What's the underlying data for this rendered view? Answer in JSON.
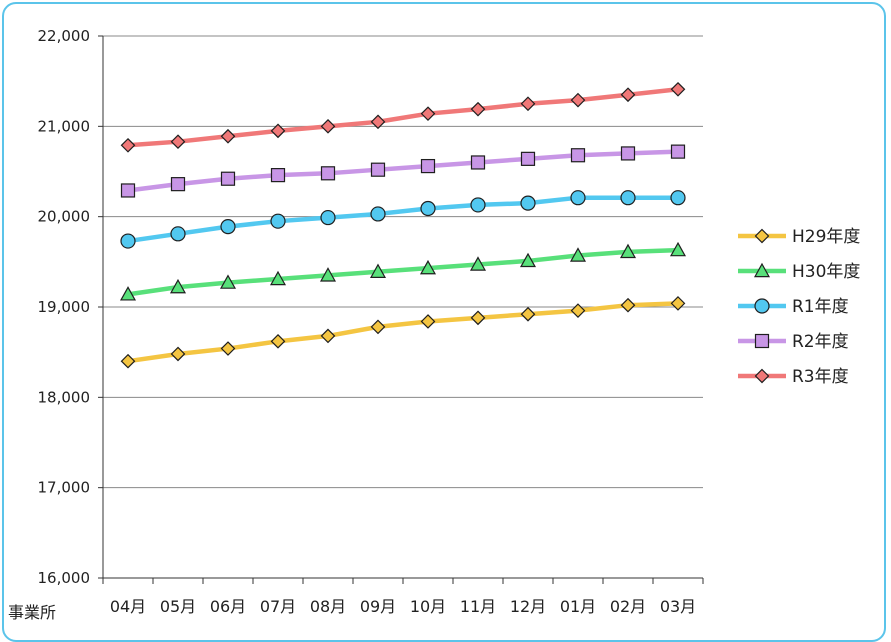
{
  "chart_data": {
    "type": "line",
    "title": "",
    "xlabel": "事業所",
    "ylabel": "",
    "categories": [
      "04月",
      "05月",
      "06月",
      "07月",
      "08月",
      "09月",
      "10月",
      "11月",
      "12月",
      "01月",
      "02月",
      "03月"
    ],
    "ylim": [
      16000,
      22000
    ],
    "yticks": [
      16000,
      17000,
      18000,
      19000,
      20000,
      21000,
      22000
    ],
    "ytick_labels": [
      "16,000",
      "17,000",
      "18,000",
      "19,000",
      "20,000",
      "21,000",
      "22,000"
    ],
    "grid": true,
    "legend_position": "right",
    "series": [
      {
        "name": "H29年度",
        "color": "#f4c542",
        "marker": "diamond",
        "marker_fill": "#f4c542",
        "values": [
          18400,
          18480,
          18540,
          18620,
          18680,
          18780,
          18840,
          18880,
          18920,
          18960,
          19020,
          19040
        ]
      },
      {
        "name": "H30年度",
        "color": "#58e07a",
        "marker": "triangle",
        "marker_fill": "#58e07a",
        "values": [
          19140,
          19220,
          19270,
          19310,
          19350,
          19390,
          19430,
          19470,
          19510,
          19570,
          19610,
          19630
        ]
      },
      {
        "name": "R1年度",
        "color": "#52c8f0",
        "marker": "circle",
        "marker_fill": "#52c8f0",
        "values": [
          19730,
          19810,
          19890,
          19950,
          19990,
          20030,
          20090,
          20130,
          20150,
          20210,
          20210,
          20210
        ]
      },
      {
        "name": "R2年度",
        "color": "#c896e6",
        "marker": "square",
        "marker_fill": "#c896e6",
        "values": [
          20290,
          20360,
          20420,
          20460,
          20480,
          20520,
          20560,
          20600,
          20640,
          20680,
          20700,
          20720
        ]
      },
      {
        "name": "R3年度",
        "color": "#f07878",
        "marker": "diamond",
        "marker_fill": "#f07878",
        "values": [
          20790,
          20830,
          20890,
          20950,
          21000,
          21050,
          21140,
          21190,
          21250,
          21290,
          21350,
          21410
        ]
      }
    ]
  }
}
